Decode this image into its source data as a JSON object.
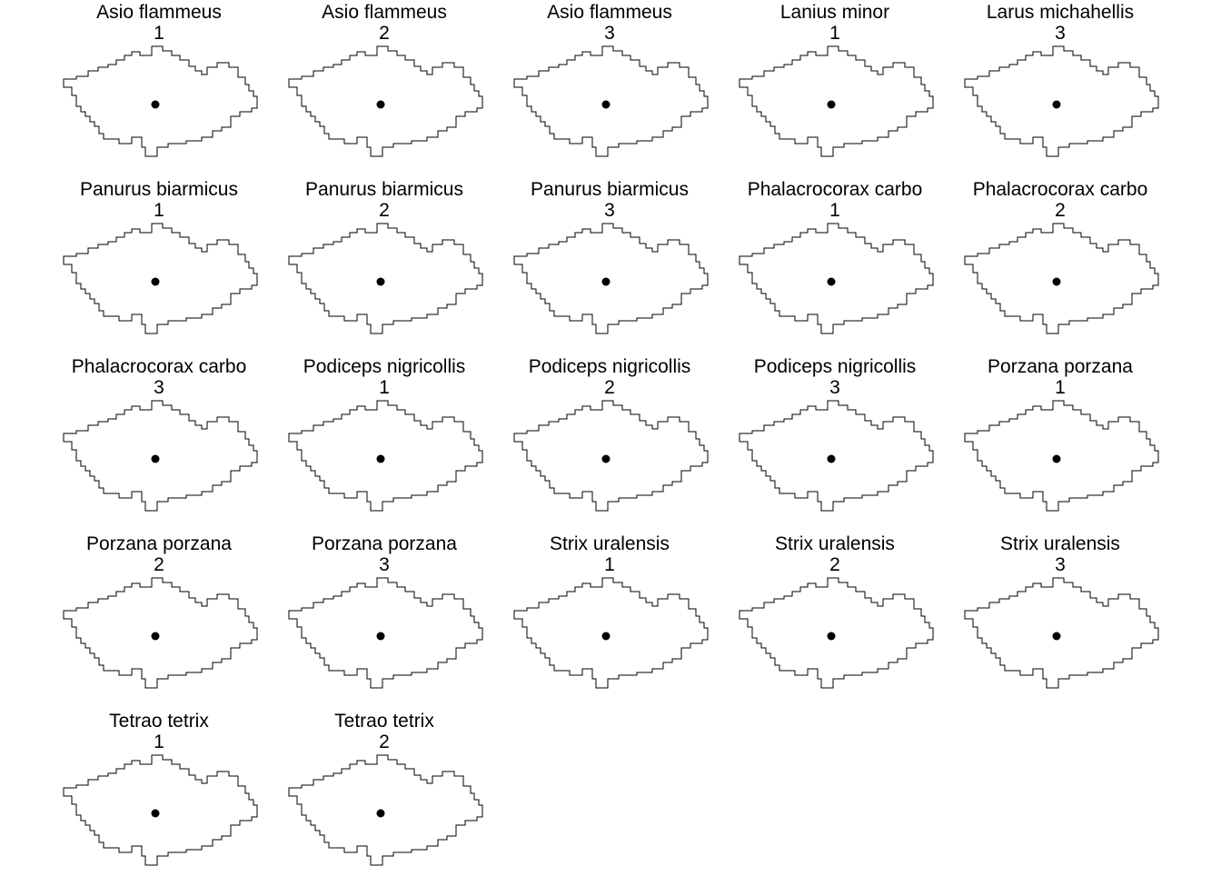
{
  "map": {
    "outline_color": "#000000",
    "point_color": "#000000",
    "panels": [
      {
        "species": "Asio flammeus",
        "number": "1"
      },
      {
        "species": "Asio flammeus",
        "number": "2"
      },
      {
        "species": "Asio flammeus",
        "number": "3"
      },
      {
        "species": "Lanius minor",
        "number": "1"
      },
      {
        "species": "Larus michahellis",
        "number": "3"
      },
      {
        "species": "Panurus biarmicus",
        "number": "1"
      },
      {
        "species": "Panurus biarmicus",
        "number": "2"
      },
      {
        "species": "Panurus biarmicus",
        "number": "3"
      },
      {
        "species": "Phalacrocorax carbo",
        "number": "1"
      },
      {
        "species": "Phalacrocorax carbo",
        "number": "2"
      },
      {
        "species": "Phalacrocorax carbo",
        "number": "3"
      },
      {
        "species": "Podiceps nigricollis",
        "number": "1"
      },
      {
        "species": "Podiceps nigricollis",
        "number": "2"
      },
      {
        "species": "Podiceps nigricollis",
        "number": "3"
      },
      {
        "species": "Porzana porzana",
        "number": "1"
      },
      {
        "species": "Porzana porzana",
        "number": "2"
      },
      {
        "species": "Porzana porzana",
        "number": "3"
      },
      {
        "species": "Strix uralensis",
        "number": "1"
      },
      {
        "species": "Strix uralensis",
        "number": "2"
      },
      {
        "species": "Strix uralensis",
        "number": "3"
      },
      {
        "species": "Tetrao tetrix",
        "number": "1"
      },
      {
        "species": "Tetrao tetrix",
        "number": "2"
      }
    ]
  }
}
